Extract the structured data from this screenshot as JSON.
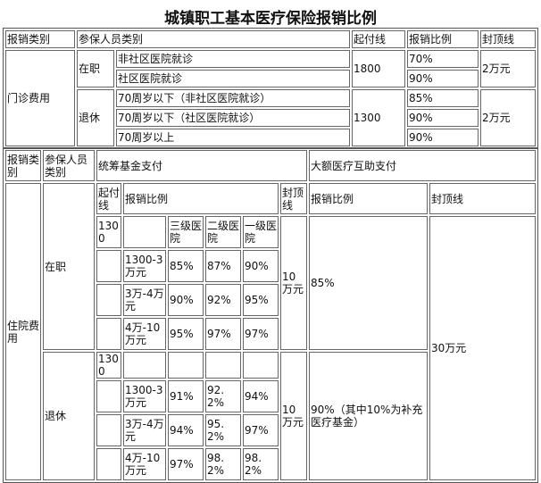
{
  "title": "城镇职工基本医疗保险报销比例",
  "outpatient": {
    "headers": [
      "报销类别",
      "参保人员类别",
      "起付线",
      "报销比例",
      "封顶线"
    ],
    "category": "门诊费用",
    "employed": {
      "label": "在职",
      "deductible": "1800",
      "cap": "2万元",
      "rows": [
        {
          "type": "非社区医院就诊",
          "ratio": "70%"
        },
        {
          "type": "社区医院就诊",
          "ratio": "90%"
        }
      ]
    },
    "retired": {
      "label": "退休",
      "deductible": "1300",
      "cap": "2万元",
      "rows": [
        {
          "type": "70周岁以下（非社区医院就诊）",
          "ratio": "85%"
        },
        {
          "type": "70周岁以下（社区医院就诊）",
          "ratio": "90%"
        },
        {
          "type": "70周岁以上",
          "ratio": "90%"
        }
      ]
    }
  },
  "inpatient": {
    "headers": {
      "category": "报销类别",
      "person": "参保人员类别",
      "pool": "统筹基金支付",
      "major": "大额医疗互助支付"
    },
    "subheaders": {
      "deductible": "起付线",
      "ratio": "报销比例",
      "cap": "封顶线",
      "major_ratio": "报销比例",
      "major_cap": "封顶线"
    },
    "levels": [
      "三级医院",
      "二级医院",
      "一级医院"
    ],
    "category": "住院费用",
    "major_cap": "30万元",
    "employed": {
      "label": "在职",
      "deductible": "1300",
      "cap": "10万元",
      "major_ratio": "85%",
      "rows": [
        {
          "range": "1300-3万元",
          "values": [
            "85%",
            "87%",
            "90%"
          ]
        },
        {
          "range": "3万-4万元",
          "values": [
            "90%",
            "92%",
            "95%"
          ]
        },
        {
          "range": "4万-10万元",
          "values": [
            "95%",
            "97%",
            "97%"
          ]
        }
      ]
    },
    "retired": {
      "label": "退休",
      "deductible": "1300",
      "cap": "10万元",
      "major_ratio": "90%（其中10%为补充医疗基金）",
      "rows": [
        {
          "range": "1300-3万元",
          "values": [
            "91%",
            "92.2%",
            "94%"
          ]
        },
        {
          "range": "3万-4万元",
          "values": [
            "94%",
            "95.2%",
            "97%"
          ]
        },
        {
          "range": "4万-10万元",
          "values": [
            "97%",
            "98.2%",
            "98.2%"
          ]
        }
      ]
    }
  }
}
